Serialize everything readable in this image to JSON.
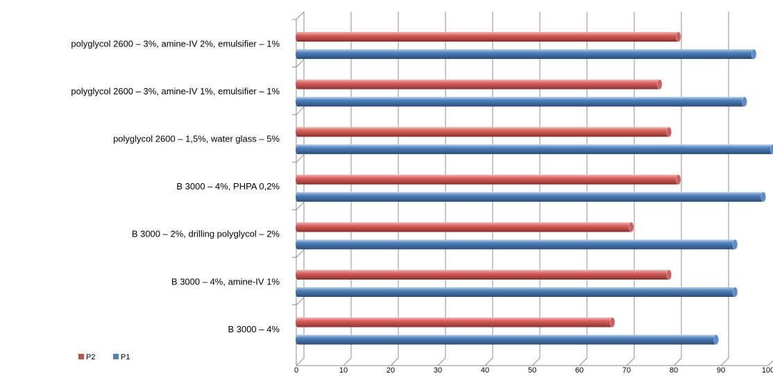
{
  "chart_data": {
    "type": "bar",
    "orientation": "horizontal",
    "categories": [
      "polyglycol 2600 – 3%, amine-IV 2%, emulsifier – 1%",
      "polyglycol 2600 – 3%, amine-IV 1%, emulsifier – 1%",
      "polyglycol 2600 – 1,5%, water glass – 5%",
      "B 3000 – 4%, PHPA 0,2%",
      "B 3000 – 2%, drilling polyglycol – 2%",
      "B 3000 – 4%, amine-IV 1%",
      "B 3000 – 4%"
    ],
    "series": [
      {
        "name": "P2",
        "color": "#c0504d",
        "values": [
          81,
          77,
          79,
          81,
          71,
          79,
          67
        ]
      },
      {
        "name": "P1",
        "color": "#4f81bd",
        "values": [
          97,
          95,
          101,
          99,
          93,
          93,
          89
        ]
      }
    ],
    "xlim": [
      0,
      100
    ],
    "xticks": [
      0,
      10,
      20,
      30,
      40,
      50,
      60,
      70,
      80,
      90,
      100
    ],
    "grid": true,
    "legend": "bottom-left"
  }
}
